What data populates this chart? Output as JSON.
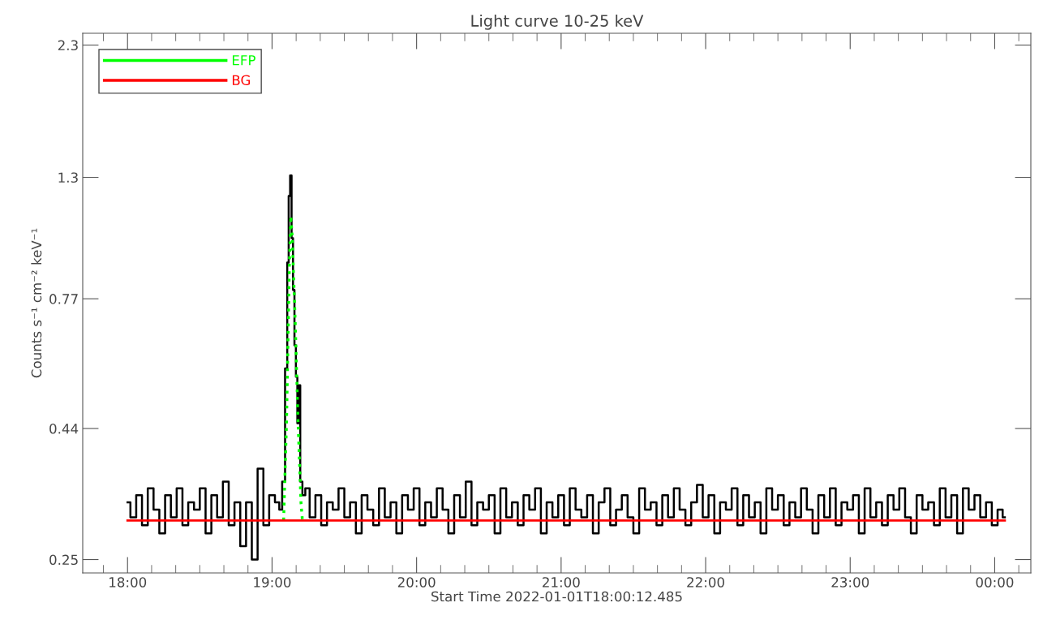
{
  "chart_data": {
    "type": "step",
    "title": "Light curve 10-25 keV",
    "xlabel": "Start Time 2022-01-01T18:00:12.485",
    "ylabel": "Counts s⁻¹ cm⁻² keV⁻¹",
    "log": "y",
    "grid": false,
    "legend": "top left",
    "marker": "none",
    "xlim": [
      17.69,
      24.25
    ],
    "xticks": [
      {
        "value": 18,
        "label": "18:00"
      },
      {
        "value": 19,
        "label": "19:00"
      },
      {
        "value": 20,
        "label": "20:00"
      },
      {
        "value": 21,
        "label": "21:00"
      },
      {
        "value": 22,
        "label": "22:00"
      },
      {
        "value": 23,
        "label": "23:00"
      },
      {
        "value": 24,
        "label": "00:00"
      }
    ],
    "ylim": [
      0.236,
      2.42
    ],
    "yticks": [
      0.25,
      0.44,
      0.77,
      1.3,
      2.3
    ],
    "series": [
      {
        "color": "#000000",
        "line_style": "solid",
        "x": [
          18.0,
          18.04,
          18.08,
          18.12,
          18.16,
          18.2,
          18.24,
          18.28,
          18.32,
          18.36,
          18.4,
          18.44,
          18.48,
          18.52,
          18.56,
          18.6,
          18.64,
          18.68,
          18.72,
          18.76,
          18.8,
          18.84,
          18.88,
          18.92,
          18.96,
          19.0,
          19.04,
          19.06,
          19.08,
          19.1,
          19.11,
          19.12,
          19.13,
          19.14,
          19.15,
          19.16,
          19.17,
          19.18,
          19.19,
          19.2,
          19.22,
          19.24,
          19.28,
          19.32,
          19.36,
          19.4,
          19.44,
          19.48,
          19.52,
          19.56,
          19.6,
          19.64,
          19.68,
          19.72,
          19.76,
          19.8,
          19.84,
          19.88,
          19.92,
          19.96,
          20.0,
          20.04,
          20.08,
          20.12,
          20.16,
          20.2,
          20.24,
          20.28,
          20.32,
          20.36,
          20.4,
          20.44,
          20.48,
          20.52,
          20.56,
          20.6,
          20.64,
          20.68,
          20.72,
          20.76,
          20.8,
          20.84,
          20.88,
          20.92,
          20.96,
          21.0,
          21.04,
          21.08,
          21.12,
          21.16,
          21.2,
          21.24,
          21.28,
          21.32,
          21.36,
          21.4,
          21.44,
          21.48,
          21.52,
          21.56,
          21.6,
          21.64,
          21.68,
          21.72,
          21.76,
          21.8,
          21.84,
          21.88,
          21.92,
          21.96,
          22.0,
          22.04,
          22.08,
          22.12,
          22.16,
          22.2,
          22.24,
          22.28,
          22.32,
          22.36,
          22.4,
          22.44,
          22.48,
          22.52,
          22.56,
          22.6,
          22.64,
          22.68,
          22.72,
          22.76,
          22.8,
          22.84,
          22.88,
          22.92,
          22.96,
          23.0,
          23.04,
          23.08,
          23.12,
          23.16,
          23.2,
          23.24,
          23.28,
          23.32,
          23.36,
          23.4,
          23.44,
          23.48,
          23.52,
          23.56,
          23.6,
          23.64,
          23.68,
          23.72,
          23.76,
          23.8,
          23.84,
          23.88,
          23.92,
          23.96,
          24.0,
          24.04,
          24.07
        ],
        "values": [
          0.32,
          0.3,
          0.33,
          0.29,
          0.34,
          0.31,
          0.28,
          0.33,
          0.3,
          0.34,
          0.29,
          0.32,
          0.31,
          0.34,
          0.28,
          0.33,
          0.3,
          0.35,
          0.29,
          0.32,
          0.265,
          0.32,
          0.25,
          0.37,
          0.29,
          0.33,
          0.32,
          0.31,
          0.35,
          0.57,
          0.9,
          1.2,
          1.31,
          1.0,
          0.8,
          0.63,
          0.55,
          0.45,
          0.53,
          0.35,
          0.33,
          0.34,
          0.3,
          0.33,
          0.29,
          0.32,
          0.31,
          0.34,
          0.3,
          0.32,
          0.28,
          0.33,
          0.31,
          0.29,
          0.34,
          0.3,
          0.32,
          0.28,
          0.33,
          0.31,
          0.34,
          0.29,
          0.32,
          0.3,
          0.34,
          0.31,
          0.28,
          0.33,
          0.3,
          0.35,
          0.29,
          0.32,
          0.31,
          0.33,
          0.28,
          0.34,
          0.3,
          0.32,
          0.29,
          0.33,
          0.31,
          0.34,
          0.28,
          0.32,
          0.3,
          0.33,
          0.29,
          0.34,
          0.31,
          0.3,
          0.33,
          0.28,
          0.32,
          0.34,
          0.29,
          0.31,
          0.33,
          0.3,
          0.28,
          0.34,
          0.31,
          0.32,
          0.29,
          0.33,
          0.3,
          0.34,
          0.31,
          0.29,
          0.32,
          0.345,
          0.3,
          0.33,
          0.28,
          0.32,
          0.31,
          0.34,
          0.29,
          0.33,
          0.3,
          0.32,
          0.28,
          0.34,
          0.31,
          0.33,
          0.29,
          0.32,
          0.3,
          0.34,
          0.31,
          0.28,
          0.33,
          0.3,
          0.34,
          0.29,
          0.32,
          0.31,
          0.33,
          0.28,
          0.34,
          0.3,
          0.32,
          0.29,
          0.33,
          0.31,
          0.34,
          0.3,
          0.28,
          0.33,
          0.31,
          0.32,
          0.29,
          0.34,
          0.3,
          0.33,
          0.28,
          0.34,
          0.31,
          0.33,
          0.3,
          0.32,
          0.29,
          0.31,
          0.3
        ]
      },
      {
        "name": "EFP",
        "color": "#00ff00",
        "type": "line",
        "line_style": "dotted",
        "x": [
          19.08,
          19.1,
          19.12,
          19.13,
          19.14,
          19.16,
          19.18,
          19.2,
          19.21
        ],
        "values": [
          0.296,
          0.45,
          0.9,
          1.1,
          1.0,
          0.7,
          0.45,
          0.32,
          0.296
        ]
      },
      {
        "name": "BG",
        "color": "#ff0000",
        "type": "line",
        "line_style": "solid",
        "x": [
          18.0,
          24.07
        ],
        "values": [
          0.296,
          0.296
        ]
      }
    ]
  }
}
